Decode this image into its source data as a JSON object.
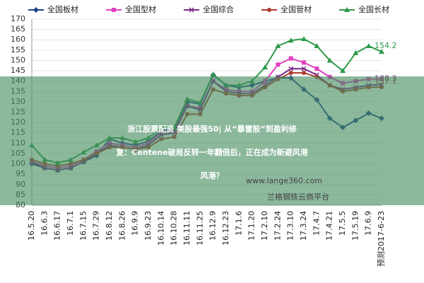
{
  "chart_data": {
    "type": "line",
    "categories": [
      "16.5.20",
      "16.6.3",
      "16.6.17",
      "16.7.1",
      "16.7.15",
      "16.7.29",
      "16.8.12",
      "16.8.26",
      "16.9.9",
      "16.9.23",
      "16.10.14",
      "16.10.28",
      "16.11.11",
      "16.11.25",
      "16.12.9",
      "16.12.23",
      "17.1.6",
      "17.1.20",
      "17.2.10",
      "17.2.24",
      "17.3.10",
      "17.3.24",
      "17.4.7",
      "17.4.21",
      "17.5.5",
      "17.5.19",
      "17.6.9",
      "预测2017-6-23"
    ],
    "series": [
      {
        "name": "全国板材",
        "color": "#1f3f8f",
        "end_label": false,
        "values": [
          100,
          98,
          97,
          98,
          101,
          104,
          112,
          110,
          109,
          111,
          116,
          117,
          130,
          129,
          143,
          138,
          137,
          138,
          140,
          141.6,
          141.5,
          136,
          131,
          122,
          117.6,
          121,
          124.5,
          122
        ]
      },
      {
        "name": "全国型材",
        "color": "#e040c0",
        "end_label": false,
        "values": [
          101,
          99,
          98,
          99,
          102,
          106,
          110,
          109,
          108,
          110,
          115,
          116,
          128,
          127,
          140,
          136,
          135,
          135,
          140,
          148,
          151,
          149,
          146,
          142,
          139,
          140,
          141,
          141
        ]
      },
      {
        "name": "全国综合",
        "color": "#7a2a8a",
        "end_label": true,
        "values": [
          101,
          98,
          97,
          98,
          101,
          105,
          109,
          108,
          107,
          109,
          114,
          115,
          128,
          126,
          140,
          135,
          134,
          134,
          138,
          142,
          146,
          146,
          143,
          138,
          136,
          137,
          138,
          138.3
        ]
      },
      {
        "name": "全国管材",
        "color": "#b03a2e",
        "end_label": true,
        "values": [
          102,
          100,
          99,
          100,
          102,
          105,
          108,
          108,
          107,
          108,
          112,
          113,
          124,
          124,
          136,
          134,
          133,
          133,
          137,
          141,
          144,
          144,
          142,
          138,
          135,
          136,
          137,
          137.1
        ]
      },
      {
        "name": "全国长材",
        "color": "#2e9a4a",
        "end_label": true,
        "values": [
          109,
          102,
          100.5,
          102,
          105.6,
          109,
          112.5,
          112.5,
          110.7,
          112.5,
          117.6,
          117.6,
          131.3,
          129.6,
          143.3,
          138,
          138,
          140,
          146.7,
          157,
          159.7,
          160.4,
          157,
          150,
          145,
          153.6,
          157,
          154.2
        ]
      }
    ],
    "ylim": [
      80,
      170
    ],
    "yticks": [
      80,
      85,
      90,
      95,
      100,
      105,
      110,
      115,
      120,
      125,
      130,
      135,
      140,
      145,
      150,
      155,
      160,
      165,
      170
    ],
    "grid": true
  },
  "overlay": {
    "lines": [
      "浙江股票配资 美股最强50| 从“暴雷股”到盈利修",
      "复：Centene破局反转一年翻倍后，正在成为新避风港",
      "风港？"
    ],
    "watermark": [
      "www.lange360.com",
      "兰格钢铁云商平台"
    ]
  }
}
